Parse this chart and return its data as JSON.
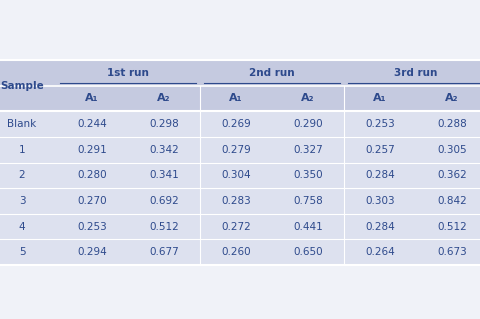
{
  "col_groups": [
    "1st run",
    "2nd run",
    "3rd run"
  ],
  "col_headers": [
    "A₁",
    "A₂",
    "A₁",
    "A₂",
    "A₁",
    "A₂"
  ],
  "row_label_header": "Sample",
  "row_labels": [
    "Blank",
    "1",
    "2",
    "3",
    "4",
    "5"
  ],
  "table_data": [
    [
      "0.244",
      "0.298",
      "0.269",
      "0.290",
      "0.253",
      "0.288"
    ],
    [
      "0.291",
      "0.342",
      "0.279",
      "0.327",
      "0.257",
      "0.305"
    ],
    [
      "0.280",
      "0.341",
      "0.304",
      "0.350",
      "0.284",
      "0.362"
    ],
    [
      "0.270",
      "0.692",
      "0.283",
      "0.758",
      "0.303",
      "0.842"
    ],
    [
      "0.253",
      "0.512",
      "0.272",
      "0.441",
      "0.284",
      "0.512"
    ],
    [
      "0.294",
      "0.677",
      "0.260",
      "0.650",
      "0.264",
      "0.673"
    ]
  ],
  "header_bg_color": "#c5cae0",
  "table_bg": "#dde1ef",
  "text_color": "#2e4a8c",
  "header_text_color": "#2e4a8c",
  "font_size": 7.5,
  "header_font_size": 7.5,
  "figure_bg": "#f0f2f8"
}
